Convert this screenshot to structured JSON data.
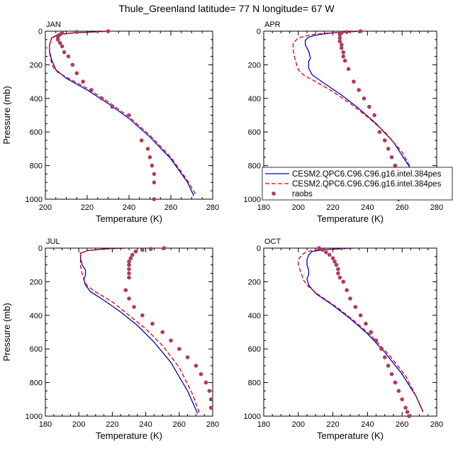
{
  "title": "Thule_Greenland  latitude= 77 N longitude= 67 W",
  "colors": {
    "series1": "#0000cc",
    "series2": "#dd0000",
    "obs": "#b03a5b"
  },
  "legend": {
    "items": [
      {
        "label": "CESM2.QPC6.C96.C96.g16.intel.384pes",
        "style": "solid"
      },
      {
        "label": "CESM2.QPC6.C96.C96.g16.intel.384pes",
        "style": "dashed"
      },
      {
        "label": "raobs",
        "style": "dots"
      }
    ]
  },
  "chart_data": [
    {
      "type": "line",
      "panel": "JAN",
      "xlabel": "Temperature (K)",
      "ylabel": "Pressure (mb)",
      "xlim": [
        200,
        280
      ],
      "ylim": [
        1000,
        0
      ],
      "xticks": [
        200,
        220,
        240,
        260,
        280
      ],
      "yticks": [
        0,
        200,
        400,
        600,
        800,
        1000
      ],
      "series": [
        {
          "name": "CESM2.QPC6.C96.C96.g16.intel.384pes",
          "style": "solid",
          "x": [
            230,
            222,
            213,
            206,
            203,
            202,
            202,
            203,
            205,
            210,
            220,
            230,
            240,
            250,
            260,
            268,
            271
          ],
          "y": [
            0,
            5,
            10,
            20,
            40,
            80,
            120,
            170,
            230,
            280,
            350,
            430,
            520,
            630,
            760,
            900,
            980
          ]
        },
        {
          "name": "CESM2.QPC6.C96.C96.g16.intel.384pes",
          "style": "dashed",
          "x": [
            232,
            223,
            214,
            207,
            203,
            202,
            202,
            203,
            204,
            206,
            211,
            220,
            230,
            240,
            250,
            260,
            268,
            272
          ],
          "y": [
            0,
            5,
            10,
            20,
            40,
            80,
            130,
            190,
            220,
            245,
            280,
            340,
            420,
            510,
            620,
            750,
            890,
            975
          ]
        },
        {
          "name": "raobs",
          "style": "dots",
          "x": [
            230,
            215,
            208,
            207,
            206,
            206,
            207,
            208,
            209,
            211,
            213,
            215,
            218,
            222,
            227,
            232,
            240,
            246,
            249,
            250,
            251,
            252,
            252,
            252
          ],
          "y": [
            0,
            5,
            10,
            20,
            35,
            50,
            70,
            90,
            125,
            150,
            200,
            250,
            300,
            350,
            400,
            450,
            500,
            650,
            700,
            750,
            800,
            850,
            900,
            1000
          ]
        }
      ]
    },
    {
      "type": "line",
      "panel": "APR",
      "xlabel": "Temperature (K)",
      "ylabel": "",
      "xlim": [
        180,
        280
      ],
      "ylim": [
        1000,
        0
      ],
      "xticks": [
        180,
        200,
        220,
        240,
        260,
        280
      ],
      "yticks": [
        0,
        200,
        400,
        600,
        800,
        1000
      ],
      "series": [
        {
          "name": "CESM2.QPC6.C96.C96.g16.intel.384pes",
          "style": "solid",
          "x": [
            235,
            228,
            220,
            212,
            206,
            204,
            204,
            206,
            207,
            206,
            206,
            208,
            215,
            225,
            235,
            245,
            255,
            265,
            272
          ],
          "y": [
            0,
            5,
            10,
            20,
            35,
            55,
            80,
            120,
            160,
            180,
            220,
            260,
            310,
            380,
            460,
            550,
            660,
            820,
            990
          ]
        },
        {
          "name": "CESM2.QPC6.C96.C96.g16.intel.384pes",
          "style": "dashed",
          "x": [
            236,
            228,
            218,
            208,
            200,
            197,
            197,
            198,
            199,
            200,
            203,
            210,
            220,
            230,
            240,
            250,
            260,
            268,
            272
          ],
          "y": [
            0,
            5,
            10,
            20,
            40,
            70,
            110,
            160,
            200,
            230,
            260,
            300,
            360,
            430,
            510,
            600,
            720,
            870,
            980
          ]
        },
        {
          "name": "raobs",
          "style": "dots",
          "x": [
            236,
            228,
            225,
            224,
            224,
            224,
            225,
            225,
            226,
            226,
            227,
            229,
            232,
            235,
            238,
            241,
            244,
            247,
            250,
            252,
            254,
            256,
            258,
            258
          ],
          "y": [
            0,
            5,
            10,
            20,
            40,
            60,
            80,
            100,
            125,
            150,
            175,
            225,
            300,
            350,
            400,
            450,
            500,
            600,
            650,
            700,
            750,
            800,
            850,
            1000
          ]
        }
      ]
    },
    {
      "type": "line",
      "panel": "JUL",
      "xlabel": "Temperature (K)",
      "ylabel": "Pressure (mb)",
      "xlim": [
        180,
        280
      ],
      "ylim": [
        1000,
        0
      ],
      "xticks": [
        180,
        200,
        220,
        240,
        260,
        280
      ],
      "yticks": [
        0,
        200,
        400,
        600,
        800,
        1000
      ],
      "series": [
        {
          "name": "CESM2.QPC6.C96.C96.g16.intel.384pes",
          "style": "solid",
          "x": [
            228,
            215,
            205,
            201,
            201,
            202,
            204,
            204,
            203,
            204,
            207,
            215,
            225,
            235,
            245,
            255,
            265,
            271
          ],
          "y": [
            0,
            5,
            15,
            30,
            60,
            100,
            130,
            160,
            190,
            220,
            260,
            310,
            380,
            460,
            560,
            680,
            850,
            985
          ]
        },
        {
          "name": "CESM2.QPC6.C96.C96.g16.intel.384pes",
          "style": "dashed",
          "x": [
            228,
            215,
            205,
            201,
            201,
            201,
            202,
            203,
            205,
            210,
            220,
            230,
            240,
            250,
            260,
            268,
            272
          ],
          "y": [
            0,
            5,
            15,
            30,
            70,
            110,
            150,
            190,
            225,
            260,
            320,
            400,
            480,
            580,
            710,
            870,
            980
          ]
        },
        {
          "name": "raobs",
          "style": "dots",
          "x": [
            251,
            243,
            238,
            234,
            232,
            231,
            230,
            230,
            230,
            230,
            230,
            228,
            230,
            233,
            238,
            244,
            250,
            255,
            260,
            265,
            270,
            273,
            276,
            278,
            279,
            279
          ],
          "y": [
            0,
            5,
            10,
            20,
            40,
            60,
            80,
            100,
            125,
            150,
            175,
            250,
            300,
            350,
            400,
            450,
            500,
            550,
            600,
            650,
            700,
            750,
            800,
            850,
            900,
            950
          ]
        }
      ]
    },
    {
      "type": "line",
      "panel": "OCT",
      "xlabel": "Temperature (K)",
      "ylabel": "",
      "xlim": [
        180,
        280
      ],
      "ylim": [
        1000,
        0
      ],
      "xticks": [
        180,
        200,
        220,
        240,
        260,
        280
      ],
      "yticks": [
        0,
        200,
        400,
        600,
        800,
        1000
      ],
      "series": [
        {
          "name": "CESM2.QPC6.C96.C96.g16.intel.384pes",
          "style": "solid",
          "x": [
            232,
            223,
            214,
            208,
            206,
            205,
            205,
            206,
            206,
            205,
            206,
            210,
            220,
            230,
            240,
            250,
            260,
            268,
            272
          ],
          "y": [
            0,
            5,
            10,
            20,
            40,
            70,
            100,
            130,
            160,
            180,
            220,
            270,
            340,
            420,
            510,
            620,
            750,
            880,
            970
          ]
        },
        {
          "name": "CESM2.QPC6.C96.C96.g16.intel.384pes",
          "style": "dashed",
          "x": [
            230,
            220,
            212,
            205,
            202,
            200,
            200,
            201,
            202,
            203,
            206,
            212,
            222,
            232,
            242,
            252,
            262,
            268,
            272
          ],
          "y": [
            0,
            5,
            10,
            20,
            40,
            70,
            100,
            130,
            160,
            190,
            230,
            280,
            350,
            430,
            520,
            630,
            760,
            880,
            975
          ]
        },
        {
          "name": "raobs",
          "style": "dots",
          "x": [
            212,
            214,
            216,
            218,
            220,
            221,
            222,
            223,
            223,
            224,
            226,
            228,
            230,
            233,
            236,
            239,
            242,
            245,
            248,
            250,
            252,
            254,
            256,
            258,
            260,
            262,
            263,
            264
          ],
          "y": [
            0,
            10,
            25,
            40,
            60,
            80,
            100,
            125,
            150,
            175,
            200,
            250,
            300,
            350,
            400,
            450,
            500,
            550,
            600,
            650,
            700,
            750,
            800,
            850,
            900,
            950,
            975,
            1000
          ]
        }
      ]
    }
  ]
}
